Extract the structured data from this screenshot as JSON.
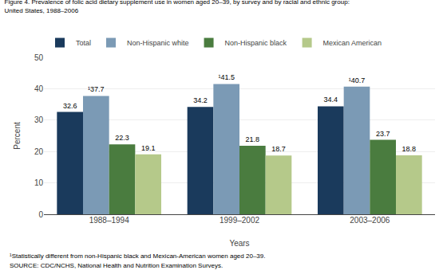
{
  "chart_data": {
    "type": "bar",
    "title": "Figure 4. Prevalence of folic acid dietary supplement use in women aged 20–39, by survey and by racial and ethnic group:",
    "subtitle": "United States, 1988–2006",
    "categories": [
      "1988–1994",
      "1999–2002",
      "2003–2006"
    ],
    "series": [
      {
        "name": "Total",
        "color": "#1a3a5c",
        "values": [
          32.6,
          34.2,
          34.4
        ],
        "value_labels": [
          "32.6",
          "34.2",
          "34.4"
        ]
      },
      {
        "name": "Non-Hispanic white",
        "color": "#7b9ab5",
        "values": [
          37.7,
          41.5,
          40.7
        ],
        "value_labels": [
          "¹37.7",
          "¹41.5",
          "¹40.7"
        ]
      },
      {
        "name": "Non-Hispanic black",
        "color": "#4a7c3f",
        "values": [
          22.3,
          21.8,
          23.7
        ],
        "value_labels": [
          "22.3",
          "21.8",
          "23.7"
        ]
      },
      {
        "name": "Mexican American",
        "color": "#b5c98a",
        "values": [
          19.1,
          18.7,
          18.8
        ],
        "value_labels": [
          "19.1",
          "18.7",
          "18.8"
        ]
      }
    ],
    "xlabel": "Years",
    "ylabel": "Percent",
    "ylim": [
      0,
      50
    ],
    "yticks": [
      0,
      10,
      20,
      30,
      40,
      50
    ],
    "grid": true,
    "legend": "upper left",
    "data_labels": true,
    "annotations": [
      "¹Statistically different from non-Hispanic black and Mexican-American women aged 20–39.",
      "SOURCE: CDC/NCHS, National Health and Nutrition Examination Surveys."
    ]
  }
}
